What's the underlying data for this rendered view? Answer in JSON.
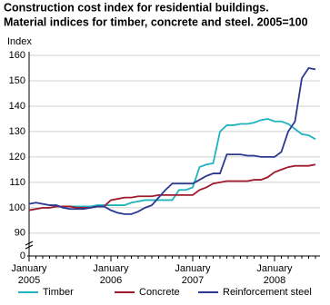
{
  "chart_data": {
    "type": "line",
    "title": "Construction cost index for residential buildings.",
    "subtitle": "Material indices for timber, concrete and steel. 2005=100",
    "y_label": "Index",
    "x": [
      "2005-01",
      "2005-02",
      "2005-03",
      "2005-04",
      "2005-05",
      "2005-06",
      "2005-07",
      "2005-08",
      "2005-09",
      "2005-10",
      "2005-11",
      "2005-12",
      "2006-01",
      "2006-02",
      "2006-03",
      "2006-04",
      "2006-05",
      "2006-06",
      "2006-07",
      "2006-08",
      "2006-09",
      "2006-10",
      "2006-11",
      "2006-12",
      "2007-01",
      "2007-02",
      "2007-03",
      "2007-04",
      "2007-05",
      "2007-06",
      "2007-07",
      "2007-08",
      "2007-09",
      "2007-10",
      "2007-11",
      "2007-12",
      "2008-01",
      "2008-02",
      "2008-03",
      "2008-04",
      "2008-05",
      "2008-06",
      "2008-07"
    ],
    "xticks": [
      {
        "value": "2005-01",
        "label": [
          "January",
          "2005"
        ]
      },
      {
        "value": "2006-01",
        "label": [
          "January",
          "2006"
        ]
      },
      {
        "value": "2007-01",
        "label": [
          "January",
          "2007"
        ]
      },
      {
        "value": "2008-01",
        "label": [
          "January",
          "2008"
        ]
      }
    ],
    "ylim": [
      81,
      160
    ],
    "yticks": [
      0,
      90,
      100,
      110,
      120,
      130,
      140,
      150,
      160
    ],
    "axis_break": true,
    "grid": true,
    "legend": "bottom",
    "series": [
      {
        "name": "Timber",
        "color": "#1fb3bf",
        "values": [
          99,
          99.5,
          100,
          100,
          100.5,
          100.5,
          100.5,
          100.5,
          100.5,
          100.5,
          101,
          101,
          101,
          101,
          101,
          102,
          102.5,
          103,
          103,
          103,
          103,
          103,
          107,
          107,
          108,
          116,
          117,
          117.5,
          130,
          132.5,
          132.5,
          133,
          133,
          133.5,
          134.5,
          135,
          134,
          134,
          133,
          131,
          129,
          128.5,
          127
        ]
      },
      {
        "name": "Concrete",
        "color": "#a01a2c",
        "values": [
          99,
          99.5,
          100,
          100,
          100.5,
          100.5,
          100.5,
          100,
          100,
          100,
          100.5,
          100.5,
          103,
          103.5,
          104,
          104,
          104.5,
          104.5,
          104.5,
          105,
          105,
          105,
          105,
          105,
          105,
          107,
          108,
          109.5,
          110,
          110.5,
          110.5,
          110.5,
          110.5,
          111,
          111,
          112,
          114,
          115,
          116,
          116.5,
          116.5,
          116.5,
          117
        ]
      },
      {
        "name": "Reinforcement steel",
        "color": "#2b3990",
        "values": [
          101.5,
          102,
          101.5,
          101,
          101,
          100,
          99.5,
          99.5,
          99.5,
          100,
          100.5,
          100.5,
          99,
          98,
          97.5,
          97.5,
          98.5,
          100,
          101,
          104,
          107,
          109.5,
          109.5,
          109.5,
          109.5,
          111,
          112.5,
          113.5,
          113.5,
          121,
          121,
          121,
          120.5,
          120.5,
          120,
          120,
          120,
          122,
          130,
          134,
          151,
          155,
          154.5
        ]
      }
    ]
  }
}
